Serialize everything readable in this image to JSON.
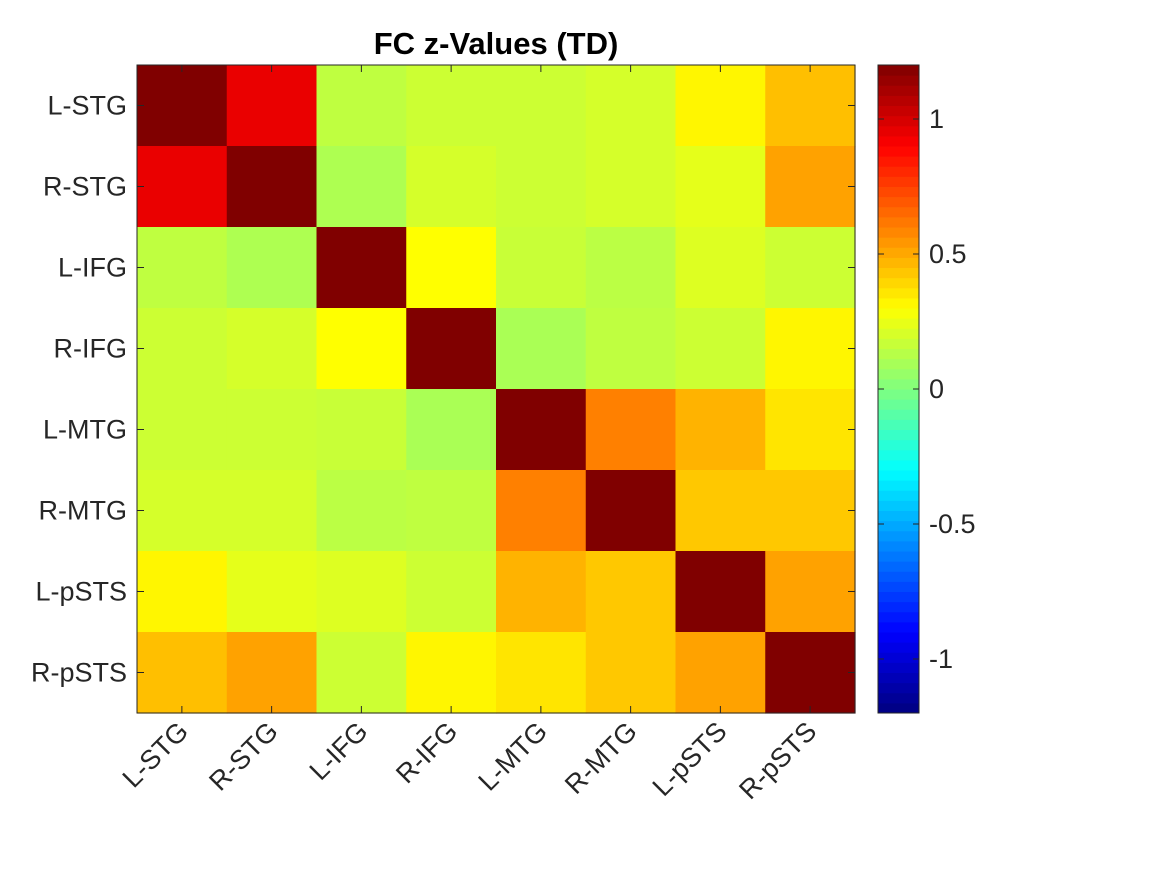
{
  "chart_data": {
    "type": "heatmap",
    "title": "FC z-Values (TD)",
    "x_labels": [
      "L-STG",
      "R-STG",
      "L-IFG",
      "R-IFG",
      "L-MTG",
      "R-MTG",
      "L-pSTS",
      "R-pSTS"
    ],
    "y_labels": [
      "L-STG",
      "R-STG",
      "L-IFG",
      "R-IFG",
      "L-MTG",
      "R-MTG",
      "L-pSTS",
      "R-pSTS"
    ],
    "values": [
      [
        1.2,
        0.95,
        0.15,
        0.18,
        0.18,
        0.2,
        0.32,
        0.45
      ],
      [
        0.95,
        1.2,
        0.11,
        0.2,
        0.18,
        0.2,
        0.24,
        0.52
      ],
      [
        0.15,
        0.11,
        1.2,
        0.3,
        0.17,
        0.14,
        0.22,
        0.18
      ],
      [
        0.18,
        0.2,
        0.3,
        1.2,
        0.1,
        0.15,
        0.18,
        0.32
      ],
      [
        0.18,
        0.18,
        0.17,
        0.1,
        1.2,
        0.6,
        0.48,
        0.36
      ],
      [
        0.2,
        0.2,
        0.14,
        0.15,
        0.6,
        1.2,
        0.43,
        0.43
      ],
      [
        0.32,
        0.24,
        0.22,
        0.18,
        0.48,
        0.43,
        1.2,
        0.52
      ],
      [
        0.45,
        0.52,
        0.18,
        0.32,
        0.36,
        0.43,
        0.52,
        1.2
      ]
    ],
    "colormap": "jet",
    "clim": [
      -1.2,
      1.2
    ],
    "colorbar": {
      "ticks": [
        1,
        0.5,
        0,
        -0.5,
        -1
      ],
      "tick_labels": [
        "1",
        "0.5",
        "0",
        "-0.5",
        "-1"
      ],
      "placement": "right"
    },
    "grid": false
  }
}
